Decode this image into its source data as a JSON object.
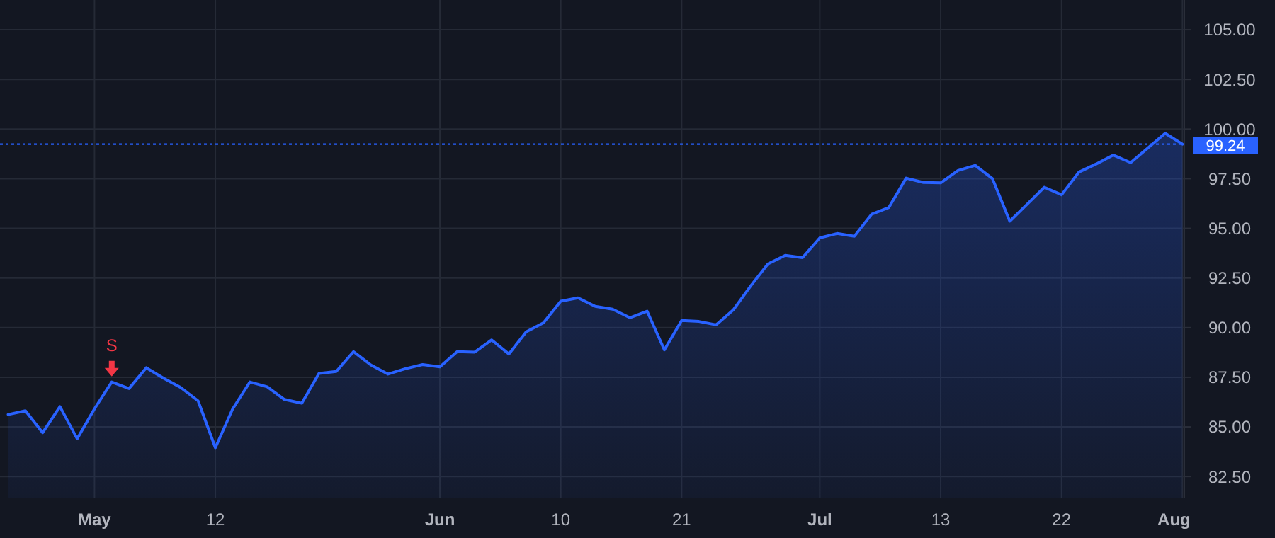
{
  "chart_data": {
    "type": "area",
    "categories": [
      null,
      null,
      null,
      null,
      null,
      "May",
      null,
      null,
      null,
      null,
      null,
      null,
      "12",
      null,
      null,
      null,
      null,
      null,
      null,
      null,
      null,
      null,
      null,
      null,
      null,
      "Jun",
      null,
      null,
      null,
      null,
      null,
      null,
      "10",
      null,
      null,
      null,
      null,
      null,
      null,
      "21",
      null,
      null,
      null,
      null,
      null,
      null,
      null,
      "Jul",
      null,
      null,
      null,
      null,
      null,
      null,
      "13",
      null,
      null,
      null,
      null,
      null,
      null,
      "22",
      null,
      null,
      null,
      null,
      null,
      null,
      "Aug"
    ],
    "series": [
      {
        "color": "#2962ff",
        "values": [
          85.62,
          85.81,
          84.71,
          86.02,
          84.4,
          85.91,
          87.26,
          86.93,
          87.98,
          87.45,
          86.98,
          86.31,
          83.95,
          85.9,
          87.26,
          87.02,
          86.38,
          86.19,
          87.69,
          87.79,
          88.79,
          88.12,
          87.66,
          87.93,
          88.14,
          88.02,
          88.79,
          88.76,
          89.38,
          88.67,
          89.79,
          90.24,
          91.33,
          91.5,
          91.07,
          90.93,
          90.5,
          90.83,
          88.88,
          90.36,
          90.31,
          90.14,
          90.9,
          92.1,
          93.21,
          93.64,
          93.52,
          94.52,
          94.74,
          94.6,
          95.71,
          96.05,
          97.53,
          97.31,
          97.29,
          97.91,
          98.17,
          97.5,
          95.36,
          96.21,
          97.07,
          96.69,
          97.83,
          98.24,
          98.69,
          98.31,
          99.05,
          99.79,
          99.24
        ]
      }
    ],
    "ylim": [
      81.4,
      106.5
    ],
    "yticks": [
      {
        "value": 82.5,
        "label": "82.50"
      },
      {
        "value": 85,
        "label": "85.00"
      },
      {
        "value": 87.5,
        "label": "87.50"
      },
      {
        "value": 90,
        "label": "90.00"
      },
      {
        "value": 92.5,
        "label": "92.50"
      },
      {
        "value": 95,
        "label": "95.00"
      },
      {
        "value": 97.5,
        "label": "97.50"
      },
      {
        "value": 100,
        "label": "100.00"
      },
      {
        "value": 102.5,
        "label": "102.50"
      },
      {
        "value": 105,
        "label": "105.00"
      }
    ],
    "grid": true,
    "ref_lines": [
      {
        "axis": "y",
        "value": 99.24,
        "label": "99.24",
        "color": "#2962ff",
        "line_style": "dotted"
      }
    ],
    "annotations": [
      {
        "text": "S",
        "y": 87.26
      }
    ]
  }
}
